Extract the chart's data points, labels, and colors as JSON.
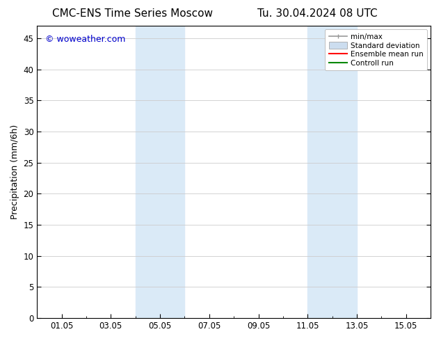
{
  "title_left": "CMC-ENS Time Series Moscow",
  "title_right": "Tu. 30.04.2024 08 UTC",
  "ylabel": "Precipitation (mm/6h)",
  "watermark": "© woweather.com",
  "watermark_color": "#0000cc",
  "ylim": [
    0,
    47
  ],
  "yticks": [
    0,
    5,
    10,
    15,
    20,
    25,
    30,
    35,
    40,
    45
  ],
  "xtick_labels": [
    "01.05",
    "03.05",
    "05.05",
    "07.05",
    "09.05",
    "11.05",
    "13.05",
    "15.05"
  ],
  "xtick_positions": [
    1,
    3,
    5,
    7,
    9,
    11,
    13,
    15
  ],
  "xmin": 0,
  "xmax": 16,
  "shade_regions": [
    {
      "xstart": 4.0,
      "xend": 6.0
    },
    {
      "xstart": 11.0,
      "xend": 13.0
    }
  ],
  "shade_color": "#daeaf7",
  "background_color": "#ffffff",
  "legend_entries": [
    {
      "label": "min/max",
      "color": "#999999",
      "lw": 1.2,
      "style": "line_with_caps"
    },
    {
      "label": "Standard deviation",
      "color": "#ccddef",
      "lw": 8,
      "style": "thick"
    },
    {
      "label": "Ensemble mean run",
      "color": "#ff0000",
      "lw": 1.5,
      "style": "line"
    },
    {
      "label": "Controll run",
      "color": "#008800",
      "lw": 1.5,
      "style": "line"
    }
  ],
  "title_fontsize": 11,
  "tick_fontsize": 8.5,
  "ylabel_fontsize": 9,
  "watermark_fontsize": 9,
  "legend_fontsize": 7.5
}
